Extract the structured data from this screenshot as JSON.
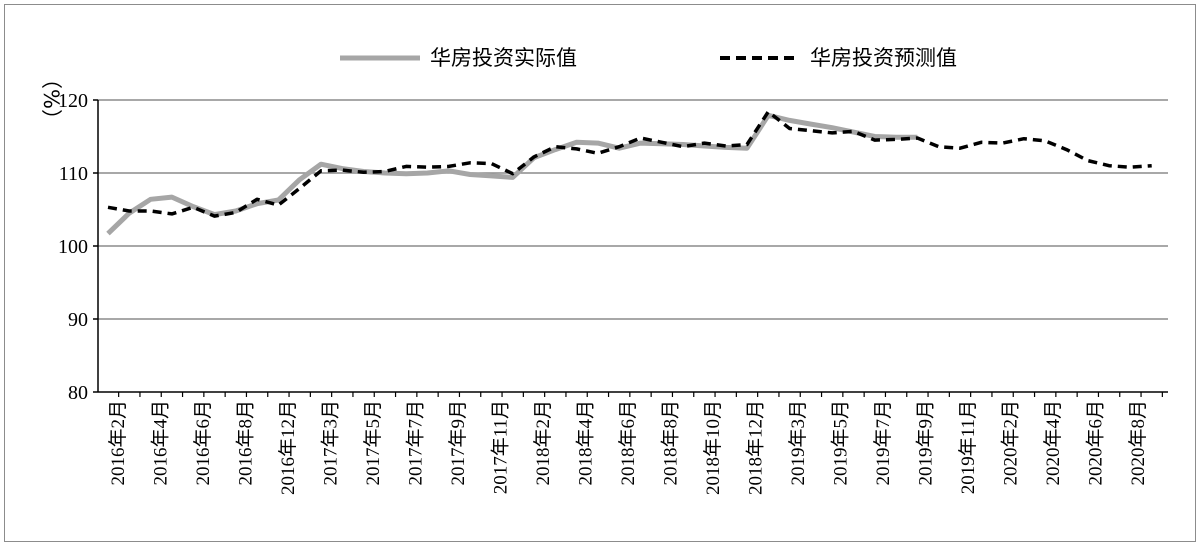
{
  "chart_data": {
    "type": "line",
    "ylabel": "（%）",
    "ylim": [
      80,
      120
    ],
    "yticks": [
      80,
      90,
      100,
      110,
      120
    ],
    "grid": true,
    "legend_position": "top-center",
    "x_tick_labels": [
      "2016年2月",
      "2016年4月",
      "2016年6月",
      "2016年8月",
      "2016年12月",
      "2017年3月",
      "2017年5月",
      "2017年7月",
      "2017年9月",
      "2017年11月",
      "2018年2月",
      "2018年4月",
      "2018年6月",
      "2018年8月",
      "2018年10月",
      "2018年12月",
      "2019年3月",
      "2019年5月",
      "2019年7月",
      "2019年9月",
      "2019年11月",
      "2020年2月",
      "2020年4月",
      "2020年6月",
      "2020年8月"
    ],
    "series": [
      {
        "name": "华房投资实际值",
        "color": "#a6a6a6",
        "style": "solid",
        "values": [
          101.7,
          104.5,
          106.4,
          106.7,
          105.4,
          104.3,
          104.8,
          105.8,
          106.3,
          109.1,
          111.2,
          110.6,
          110.2,
          110.0,
          109.9,
          110.0,
          110.3,
          109.8,
          109.6,
          109.4,
          112.1,
          113.2,
          114.2,
          114.1,
          113.4,
          114.1,
          114.0,
          113.9,
          113.7,
          113.5,
          113.4,
          117.9,
          117.2,
          116.7,
          116.2,
          115.6,
          115.0,
          114.9,
          114.9
        ]
      },
      {
        "name": "华房投资预测值",
        "color": "#000000",
        "style": "dashed",
        "values": [
          105.3,
          104.8,
          104.8,
          104.4,
          105.3,
          104.1,
          104.6,
          106.4,
          105.6,
          107.9,
          110.3,
          110.4,
          110.1,
          110.2,
          110.9,
          110.8,
          110.9,
          111.4,
          111.3,
          109.9,
          112.2,
          113.6,
          113.3,
          112.7,
          113.6,
          114.8,
          114.2,
          113.6,
          114.1,
          113.7,
          113.9,
          118.4,
          116.1,
          115.8,
          115.5,
          115.7,
          114.5,
          114.6,
          114.8,
          113.6,
          113.4,
          114.2,
          114.1,
          114.7,
          114.4,
          113.2,
          111.7,
          111.0,
          110.8,
          111.0
        ]
      }
    ]
  }
}
